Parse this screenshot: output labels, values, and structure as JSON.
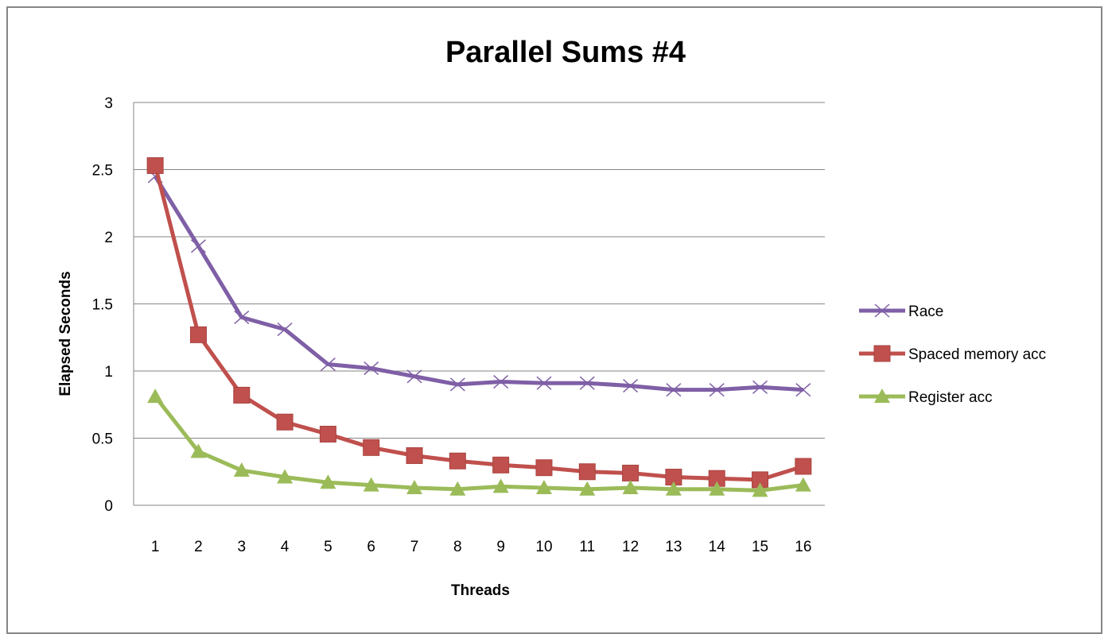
{
  "chart_data": {
    "type": "line",
    "title": "Parallel Sums #4",
    "xlabel": "Threads",
    "ylabel": "Elapsed Seconds",
    "categories": [
      "1",
      "2",
      "3",
      "4",
      "5",
      "6",
      "7",
      "8",
      "9",
      "10",
      "11",
      "12",
      "13",
      "14",
      "15",
      "16"
    ],
    "ylim": [
      0,
      3
    ],
    "yticks": [
      "0",
      "0.5",
      "1",
      "1.5",
      "2",
      "2.5",
      "3"
    ],
    "grid": true,
    "legend_position": "right",
    "series": [
      {
        "name": "Race",
        "color": "#7F5FA6",
        "marker": "x",
        "values": [
          2.45,
          1.93,
          1.4,
          1.31,
          1.05,
          1.02,
          0.96,
          0.9,
          0.92,
          0.91,
          0.91,
          0.89,
          0.86,
          0.86,
          0.88,
          0.86
        ]
      },
      {
        "name": "Spaced memory acc",
        "color": "#C0504D",
        "marker": "square",
        "values": [
          2.53,
          1.27,
          0.82,
          0.62,
          0.53,
          0.43,
          0.37,
          0.33,
          0.3,
          0.28,
          0.25,
          0.24,
          0.21,
          0.2,
          0.19,
          0.29
        ]
      },
      {
        "name": "Register acc",
        "color": "#9BBB59",
        "marker": "triangle",
        "values": [
          0.81,
          0.4,
          0.26,
          0.21,
          0.17,
          0.15,
          0.13,
          0.12,
          0.14,
          0.13,
          0.12,
          0.13,
          0.12,
          0.12,
          0.11,
          0.15
        ]
      }
    ]
  }
}
